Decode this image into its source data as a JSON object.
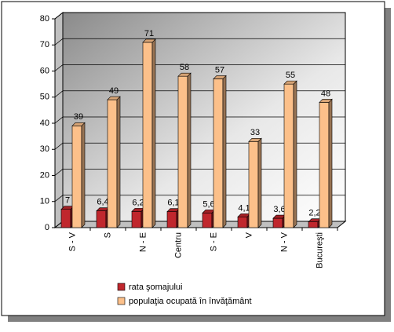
{
  "chart_data": {
    "type": "bar3d",
    "categories": [
      "S - V",
      "S",
      "N - E",
      "Centru",
      "S - E",
      "V",
      "N - V",
      "Bucureşti"
    ],
    "series": [
      {
        "name": "rata şomajului",
        "color": "#c0272d",
        "values": [
          7,
          6.4,
          6.2,
          6.1,
          5.6,
          4.1,
          3.6,
          2.2
        ],
        "value_labels": [
          "7",
          "6,4",
          "6,2",
          "6,1",
          "5,6",
          "4,1",
          "3,6",
          "2,2"
        ]
      },
      {
        "name": "populaţia ocupată în învăţământ",
        "color": "#fcc08a",
        "values": [
          39,
          49,
          71,
          58,
          57,
          33,
          55,
          48
        ]
      }
    ],
    "ylim": [
      0,
      80
    ],
    "yticks": [
      0,
      10,
      20,
      30,
      40,
      50,
      60,
      70,
      80
    ],
    "grid": true,
    "legend": "bottom"
  }
}
